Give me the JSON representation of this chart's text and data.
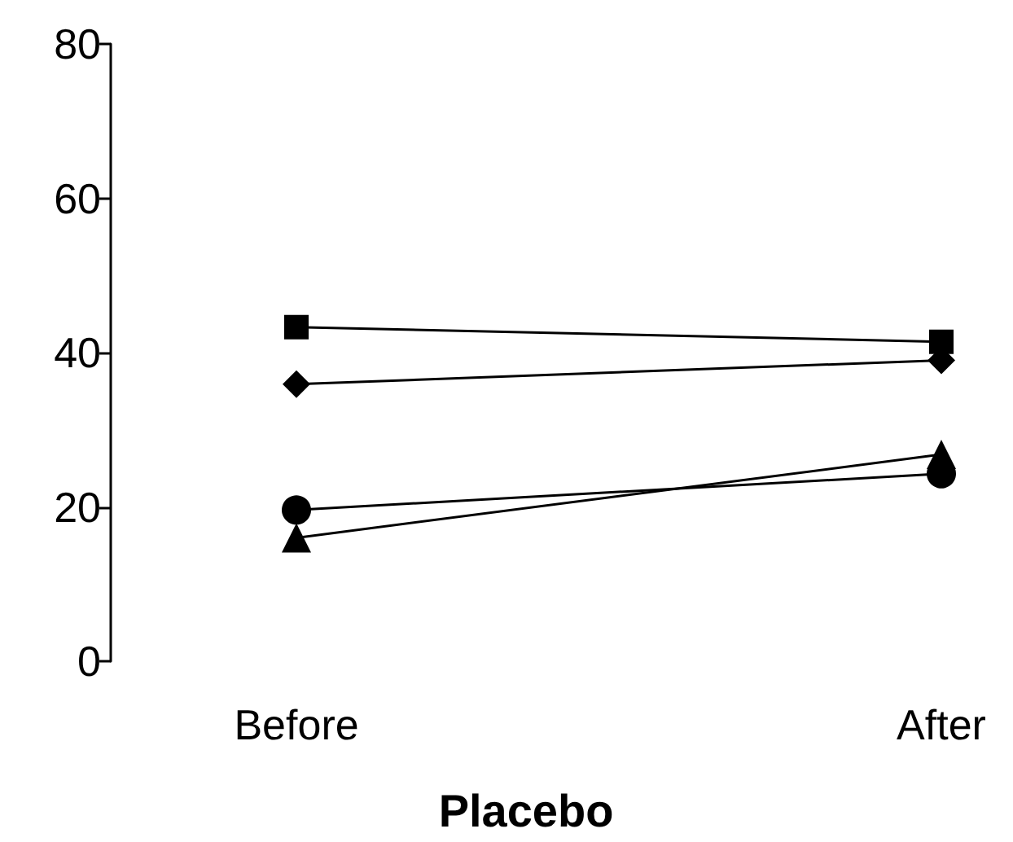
{
  "chart_data": {
    "type": "line",
    "xlabel": "Placebo",
    "categories": [
      "Before",
      "After"
    ],
    "series": [
      {
        "color": "#000000",
        "marker": "square",
        "values": [
          43.3,
          41.4
        ]
      },
      {
        "color": "#000000",
        "marker": "diamond",
        "values": [
          35.9,
          39
        ]
      },
      {
        "color": "#000000",
        "marker": "circle",
        "values": [
          19.6,
          24.3
        ]
      },
      {
        "color": "#000000",
        "marker": "triangle",
        "values": [
          16,
          26.8
        ]
      }
    ],
    "ylim": [
      0,
      80
    ],
    "yticks": [
      0,
      20,
      40,
      60,
      80
    ],
    "grid": false,
    "line_style": "solid"
  }
}
